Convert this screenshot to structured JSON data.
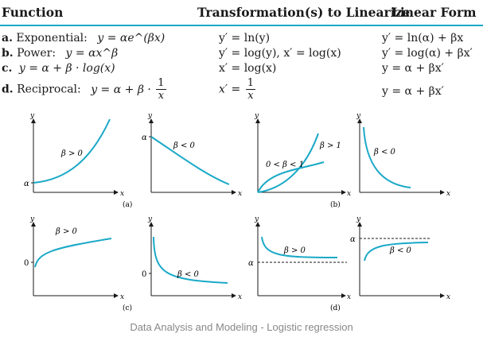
{
  "header": {
    "col_function": "Function",
    "col_transform": "Transformation(s) to Linearize",
    "col_linear": "Linear Form"
  },
  "rows": [
    {
      "letter": "a.",
      "name": "Exponential:",
      "formula": "y = αe^(βx)",
      "transform": "y′ = ln(y)",
      "linear": "y′ = ln(α) + βx"
    },
    {
      "letter": "b.",
      "name": "Power:",
      "formula": "y = αx^β",
      "transform": "y′ = log(y), x′ = log(x)",
      "linear": "y′ = log(α) + βx′"
    },
    {
      "letter": "c.",
      "name": "",
      "formula": "y = α + β · log(x)",
      "transform": "x′ = log(x)",
      "linear": "y = α + βx′"
    },
    {
      "letter": "d.",
      "name": "Reciprocal:",
      "formula_prefix": "y = α + β ·",
      "formula_num": "1",
      "formula_den": "x",
      "transform_prefix": "x′ =",
      "transform_num": "1",
      "transform_den": "x",
      "linear": "y = α + βx′"
    }
  ],
  "axis_labels": {
    "x": "x",
    "y": "y"
  },
  "panels": [
    {
      "group": "a",
      "curve": "exponential-growth",
      "label": "β > 0",
      "y_tick": "α"
    },
    {
      "group": "a",
      "curve": "exponential-decay",
      "label": "β < 0",
      "y_tick": "α",
      "caption": "(a)"
    },
    {
      "group": "b",
      "curve": "power-positive",
      "labels": [
        "β > 1",
        "0 < β < 1"
      ]
    },
    {
      "group": "b",
      "curve": "power-negative",
      "label": "β < 0",
      "caption": "(b)"
    },
    {
      "group": "c",
      "curve": "log-increasing",
      "label": "β > 0",
      "y_tick": "0"
    },
    {
      "group": "c",
      "curve": "log-decreasing",
      "label": "β < 0",
      "y_tick": "0",
      "caption": "(c)"
    },
    {
      "group": "d",
      "curve": "reciprocal-positive",
      "label": "β > 0",
      "y_tick": "α"
    },
    {
      "group": "d",
      "curve": "reciprocal-negative",
      "label": "β < 0",
      "y_tick": "α",
      "caption": "(d)"
    }
  ],
  "captions": [
    "(a)",
    "(b)",
    "(c)",
    "(d)"
  ],
  "footer": "Data Analysis and Modeling - Logistic regression",
  "colors": {
    "curve": "#1aa9c7",
    "rule": "#1aa9c7",
    "axis": "#1a1a1a",
    "footer": "#888888"
  }
}
